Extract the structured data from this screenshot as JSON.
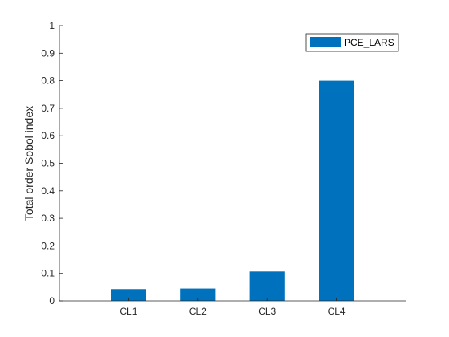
{
  "chart_data": {
    "type": "bar",
    "categories": [
      "CL1",
      "CL2",
      "CL3",
      "CL4"
    ],
    "series": [
      {
        "name": "PCE_LARS",
        "values": [
          0.043,
          0.045,
          0.107,
          0.8
        ],
        "color": "#0072BD"
      }
    ],
    "ylabel": "Total order Sobol index",
    "xlabel": "",
    "title": "",
    "ylim": [
      0,
      1
    ],
    "yticks": [
      "0",
      "0.1",
      "0.2",
      "0.3",
      "0.4",
      "0.5",
      "0.6",
      "0.7",
      "0.8",
      "0.9",
      "1"
    ],
    "ytick_values": [
      0,
      0.1,
      0.2,
      0.3,
      0.4,
      0.5,
      0.6,
      0.7,
      0.8,
      0.9,
      1
    ],
    "grid": false,
    "legend_position": "top-right"
  }
}
